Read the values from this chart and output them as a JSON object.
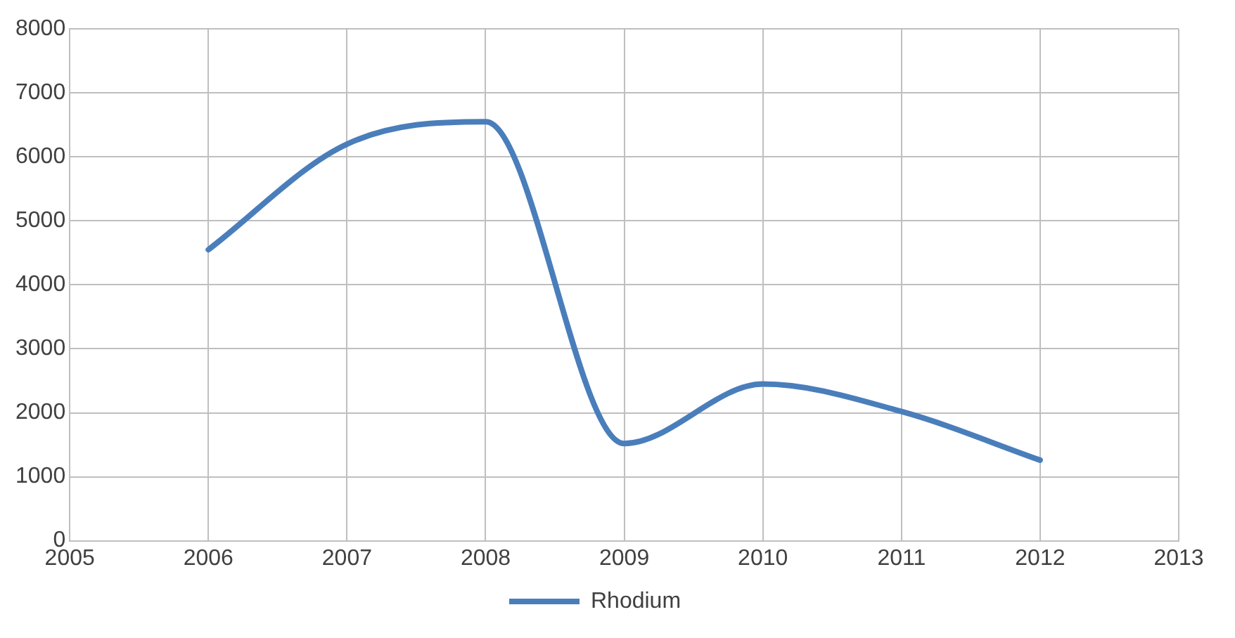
{
  "chart_data": {
    "type": "line",
    "x": [
      2006,
      2007,
      2008,
      2009,
      2010,
      2011,
      2012
    ],
    "series": [
      {
        "name": "Rhodium",
        "color": "#4a7ebb",
        "values": [
          4550,
          6200,
          6550,
          1520,
          2450,
          2020,
          1260
        ]
      }
    ],
    "xlim": [
      2005,
      2013
    ],
    "xticks": [
      2005,
      2006,
      2007,
      2008,
      2009,
      2010,
      2011,
      2012,
      2013
    ],
    "ylim": [
      0,
      8000
    ],
    "yticks": [
      0,
      1000,
      2000,
      3000,
      4000,
      5000,
      6000,
      7000,
      8000
    ],
    "grid": true,
    "legend": "bottom",
    "marker": "none",
    "line_style": "solid"
  }
}
